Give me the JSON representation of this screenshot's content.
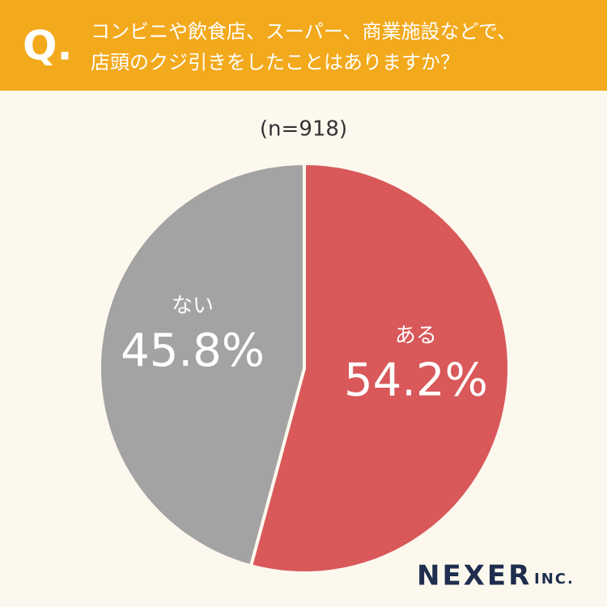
{
  "header": {
    "mark": "Q.",
    "lines": [
      "コンビニや飲食店、スーパー、商業施設などで、",
      "店頭のクジ引きをしたことはありますか？"
    ]
  },
  "chart_data": {
    "type": "pie",
    "subtitle": "(n=918)",
    "categories": [
      "ある",
      "ない"
    ],
    "values": [
      54.2,
      45.8
    ],
    "value_labels": [
      "54.2%",
      "45.8%"
    ],
    "colors": [
      "#d9585a",
      "#a3a3a3"
    ]
  },
  "logo": {
    "name": "NEXER",
    "suffix": "INC."
  }
}
